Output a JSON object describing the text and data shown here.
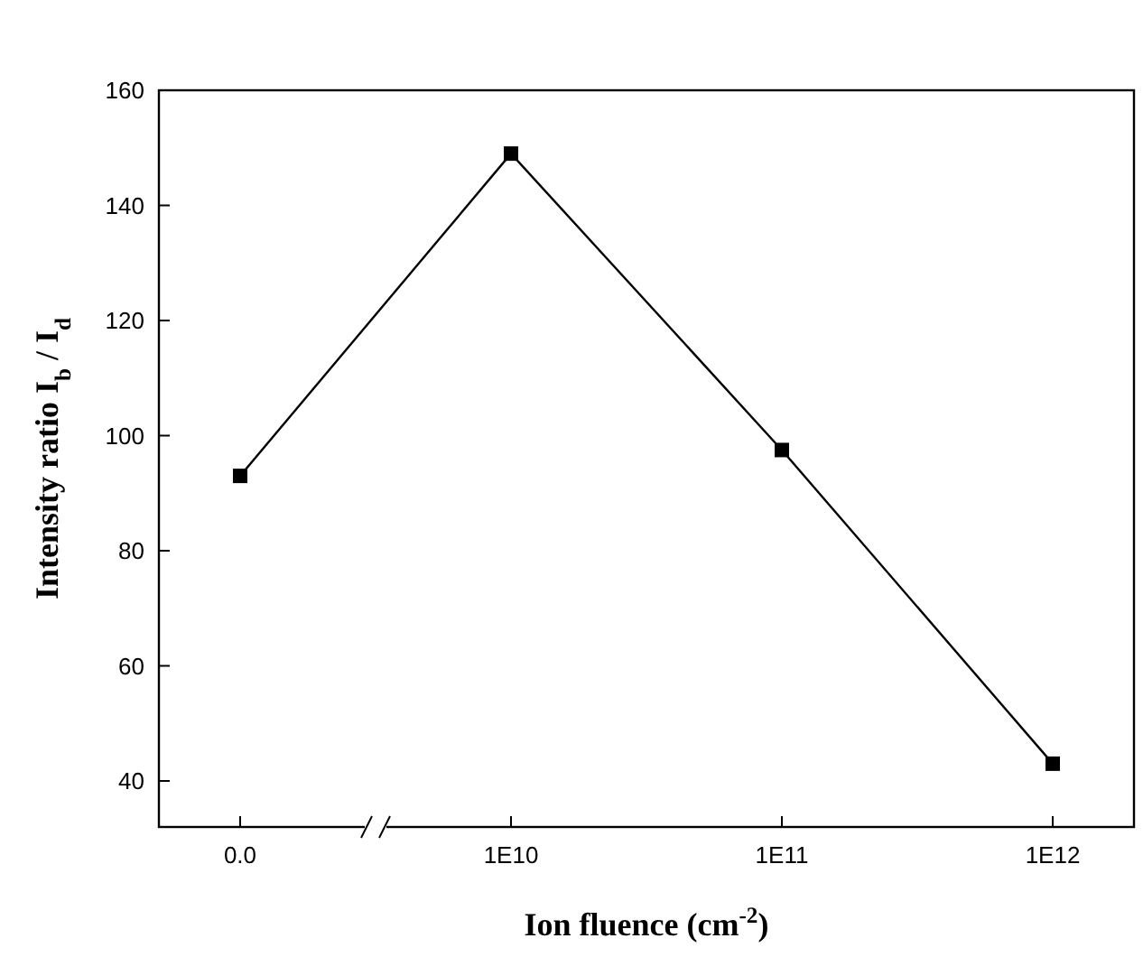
{
  "chart_data": {
    "type": "line",
    "xlabel": "Ion fluence (cm$^{-2}$)",
    "ylabel": "Intensity ratio I$_{b}$ / I$_{d}$",
    "categories": [
      "0.0",
      "1E10",
      "1E11",
      "1E12"
    ],
    "series": [
      {
        "color": "#000000",
        "values": [
          93,
          149,
          97.5,
          43
        ]
      }
    ],
    "ylim": [
      32,
      160
    ],
    "yticks": [
      40,
      60,
      80,
      100,
      120,
      140,
      160
    ],
    "marker": "square",
    "line_style": "solid"
  }
}
